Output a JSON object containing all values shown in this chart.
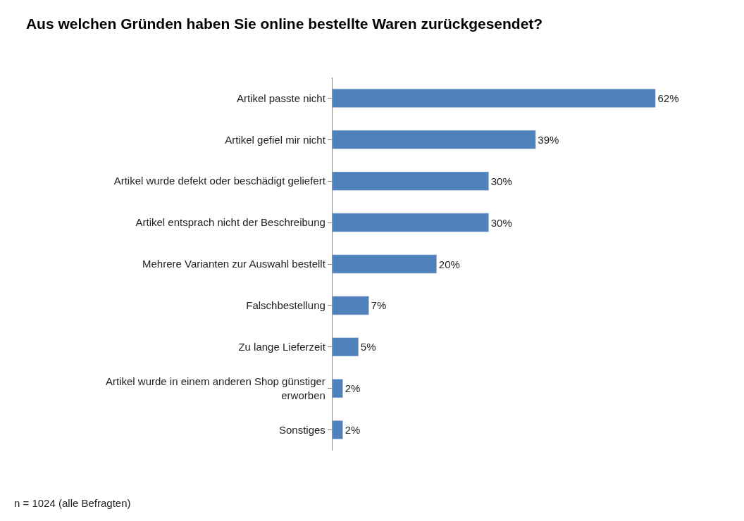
{
  "chart_data": {
    "type": "bar",
    "orientation": "horizontal",
    "title": "Aus welchen Gründen haben Sie online bestellte Waren zurückgesendet?",
    "categories": [
      "Artikel passte nicht",
      "Artikel gefiel mir nicht",
      "Artikel wurde defekt oder beschädigt geliefert",
      "Artikel entsprach nicht der Beschreibung",
      "Mehrere Varianten zur Auswahl bestellt",
      "Falschbestellung",
      "Zu lange Lieferzeit",
      "Artikel wurde in einem anderen Shop günstiger\nerworben",
      "Sonstiges"
    ],
    "values": [
      62,
      39,
      30,
      30,
      20,
      7,
      5,
      2,
      2
    ],
    "value_labels": [
      "62%",
      "39%",
      "30%",
      "30%",
      "20%",
      "7%",
      "5%",
      "2%",
      "2%"
    ],
    "color": "#4f81bd",
    "annotations": [
      "n = 1024 (alle Befragten)"
    ]
  }
}
